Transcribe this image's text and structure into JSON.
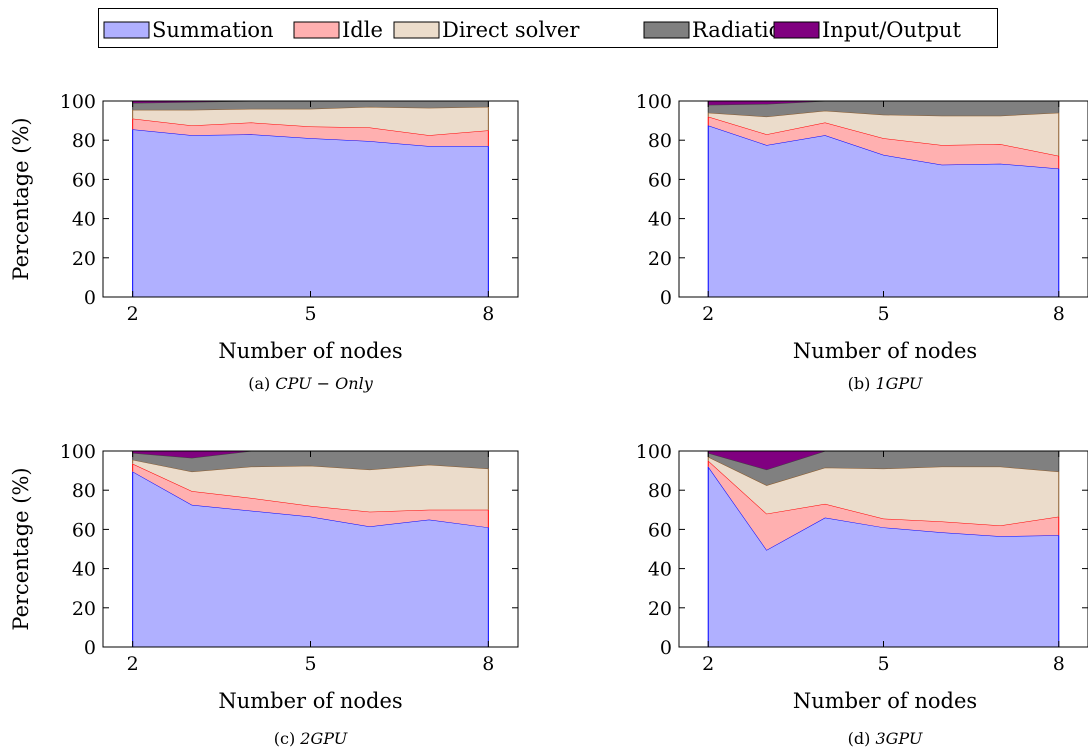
{
  "legend": [
    {
      "name": "Summation",
      "color": "#b0b0ff",
      "stroke": "#0000ff"
    },
    {
      "name": "Idle",
      "color": "#ffb0b0",
      "stroke": "#ff0000"
    },
    {
      "name": "Direct solver",
      "color": "#ebdccb",
      "stroke": "#8b5a2b"
    },
    {
      "name": "Radiation",
      "color": "#808080",
      "stroke": "#404040"
    },
    {
      "name": "Input/Output",
      "color": "#800080",
      "stroke": "#800080"
    }
  ],
  "chart_data": [
    {
      "type": "area",
      "caption_prefix": "(a) ",
      "caption": "CPU − Only",
      "xlabel": "Number of nodes",
      "ylabel": "Percentage (%)",
      "x": [
        2,
        3,
        4,
        5,
        6,
        7,
        8
      ],
      "xticks": [
        2,
        5,
        8
      ],
      "yticks": [
        0,
        20,
        40,
        60,
        80,
        100
      ],
      "xlim": [
        1.5,
        8.5
      ],
      "ylim": [
        0,
        100
      ],
      "series": [
        {
          "name": "Summation",
          "values": [
            85.5,
            82.5,
            83,
            81,
            79.5,
            77,
            77
          ]
        },
        {
          "name": "Idle",
          "values": [
            5.5,
            5,
            6,
            6,
            7,
            5.5,
            8
          ]
        },
        {
          "name": "Direct solver",
          "values": [
            4.5,
            8,
            7,
            9,
            10.5,
            14,
            12
          ]
        },
        {
          "name": "Radiation",
          "values": [
            3.5,
            4,
            4,
            4,
            3,
            3.5,
            3
          ]
        },
        {
          "name": "Input/Output",
          "values": [
            1,
            0.5,
            0,
            0,
            0,
            0,
            0
          ]
        }
      ]
    },
    {
      "type": "area",
      "caption_prefix": "(b) ",
      "caption": "1GPU",
      "xlabel": "Number of nodes",
      "ylabel": "",
      "x": [
        2,
        3,
        4,
        5,
        6,
        7,
        8
      ],
      "xticks": [
        2,
        5,
        8
      ],
      "yticks": [
        0,
        20,
        40,
        60,
        80,
        100
      ],
      "xlim": [
        1.5,
        8.5
      ],
      "ylim": [
        0,
        100
      ],
      "series": [
        {
          "name": "Summation",
          "values": [
            87.5,
            77.5,
            82.5,
            72.5,
            67.5,
            68,
            65.5
          ]
        },
        {
          "name": "Idle",
          "values": [
            4.5,
            5.5,
            6.5,
            8.5,
            10,
            10,
            6.5
          ]
        },
        {
          "name": "Direct solver",
          "values": [
            2,
            9,
            6,
            12,
            15,
            14.5,
            22
          ]
        },
        {
          "name": "Radiation",
          "values": [
            4,
            6.5,
            5,
            7,
            7.5,
            7.5,
            6
          ]
        },
        {
          "name": "Input/Output",
          "values": [
            2,
            1.5,
            0,
            0,
            0,
            0,
            0
          ]
        }
      ]
    },
    {
      "type": "area",
      "caption_prefix": "(c) ",
      "caption": "2GPU",
      "xlabel": "Number of nodes",
      "ylabel": "Percentage (%)",
      "x": [
        2,
        3,
        4,
        5,
        6,
        7,
        8
      ],
      "xticks": [
        2,
        5,
        8
      ],
      "yticks": [
        0,
        20,
        40,
        60,
        80,
        100
      ],
      "xlim": [
        1.5,
        8.5
      ],
      "ylim": [
        0,
        100
      ],
      "series": [
        {
          "name": "Summation",
          "values": [
            89.5,
            72.5,
            69.5,
            66.5,
            61.5,
            65,
            61
          ]
        },
        {
          "name": "Idle",
          "values": [
            4,
            7,
            6.5,
            5.5,
            7.5,
            5,
            9
          ]
        },
        {
          "name": "Direct solver",
          "values": [
            2,
            10,
            16,
            20.5,
            21.5,
            23,
            21
          ]
        },
        {
          "name": "Radiation",
          "values": [
            3.5,
            7,
            8,
            7.5,
            9.5,
            7,
            9
          ]
        },
        {
          "name": "Input/Output",
          "values": [
            1,
            3.5,
            0,
            0,
            0,
            0,
            0
          ]
        }
      ]
    },
    {
      "type": "area",
      "caption_prefix": "(d) ",
      "caption": "3GPU",
      "xlabel": "Number of nodes",
      "ylabel": "",
      "x": [
        2,
        3,
        4,
        5,
        6,
        7,
        8
      ],
      "xticks": [
        2,
        5,
        8
      ],
      "yticks": [
        0,
        20,
        40,
        60,
        80,
        100
      ],
      "xlim": [
        1.5,
        8.5
      ],
      "ylim": [
        0,
        100
      ],
      "series": [
        {
          "name": "Summation",
          "values": [
            92,
            49.5,
            66,
            61,
            58.5,
            56.5,
            57
          ]
        },
        {
          "name": "Idle",
          "values": [
            3,
            18.5,
            7,
            4.5,
            5.5,
            5.5,
            9.5
          ]
        },
        {
          "name": "Direct solver",
          "values": [
            2,
            14.5,
            18.5,
            25.5,
            28,
            30,
            23
          ]
        },
        {
          "name": "Radiation",
          "values": [
            2,
            8,
            8.5,
            9,
            8,
            8,
            10.5
          ]
        },
        {
          "name": "Input/Output",
          "values": [
            1,
            9.5,
            0,
            0,
            0,
            0,
            0
          ]
        }
      ]
    }
  ]
}
